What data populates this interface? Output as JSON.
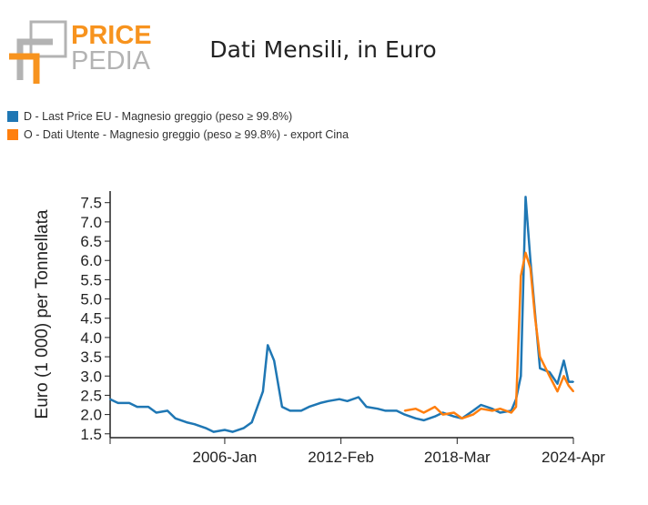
{
  "brand": {
    "line1": "PRICE",
    "line2": "PEDIA"
  },
  "colors": {
    "series_d": "#1f77b4",
    "series_o": "#ff7f0e",
    "logo_orange": "#f7931e",
    "logo_gray": "#b3b3b3"
  },
  "chart_data": {
    "type": "line",
    "title": "Dati Mensili, in Euro",
    "ylabel": "Euro (1 000) per Tonnellata",
    "xlabel": "",
    "ylim": [
      1.4,
      7.8
    ],
    "yticks": [
      1.5,
      2.0,
      2.5,
      3.0,
      3.5,
      4.0,
      4.5,
      5.0,
      5.5,
      6.0,
      6.5,
      7.0,
      7.5
    ],
    "ytick_labels": [
      "1.5",
      "2.0",
      "2.5",
      "3.0",
      "3.5",
      "4.0",
      "4.5",
      "5.0",
      "5.5",
      "6.0",
      "6.5",
      "7.0",
      "7.5"
    ],
    "xlim": [
      "2000-01",
      "2024-04"
    ],
    "xticks": [
      "2000-01",
      "2006-01",
      "2012-02",
      "2018-03",
      "2024-04"
    ],
    "xtick_labels": [
      "",
      "2006-Jan",
      "2012-Feb",
      "2018-Mar",
      "2024-Apr"
    ],
    "legend_position": "top-left",
    "grid": false,
    "series": [
      {
        "name": "D - Last Price EU - Magnesio greggio (peso ≥ 99.8%)",
        "color": "#1f77b4",
        "points": [
          [
            "2000-01",
            2.4
          ],
          [
            "2000-06",
            2.3
          ],
          [
            "2001-01",
            2.3
          ],
          [
            "2001-06",
            2.2
          ],
          [
            "2002-01",
            2.2
          ],
          [
            "2002-06",
            2.05
          ],
          [
            "2003-01",
            2.1
          ],
          [
            "2003-06",
            1.9
          ],
          [
            "2004-01",
            1.8
          ],
          [
            "2004-06",
            1.75
          ],
          [
            "2005-01",
            1.65
          ],
          [
            "2005-06",
            1.55
          ],
          [
            "2006-01",
            1.6
          ],
          [
            "2006-06",
            1.55
          ],
          [
            "2007-01",
            1.65
          ],
          [
            "2007-06",
            1.8
          ],
          [
            "2008-01",
            2.6
          ],
          [
            "2008-04",
            3.8
          ],
          [
            "2008-08",
            3.4
          ],
          [
            "2009-01",
            2.2
          ],
          [
            "2009-06",
            2.1
          ],
          [
            "2010-01",
            2.1
          ],
          [
            "2010-06",
            2.2
          ],
          [
            "2011-01",
            2.3
          ],
          [
            "2011-06",
            2.35
          ],
          [
            "2012-01",
            2.4
          ],
          [
            "2012-06",
            2.35
          ],
          [
            "2013-01",
            2.45
          ],
          [
            "2013-06",
            2.2
          ],
          [
            "2014-01",
            2.15
          ],
          [
            "2014-06",
            2.1
          ],
          [
            "2015-01",
            2.1
          ],
          [
            "2015-06",
            2.0
          ],
          [
            "2016-01",
            1.9
          ],
          [
            "2016-06",
            1.85
          ],
          [
            "2017-01",
            1.95
          ],
          [
            "2017-06",
            2.05
          ],
          [
            "2018-01",
            1.95
          ],
          [
            "2018-06",
            1.9
          ],
          [
            "2019-01",
            2.1
          ],
          [
            "2019-06",
            2.25
          ],
          [
            "2020-01",
            2.15
          ],
          [
            "2020-06",
            2.05
          ],
          [
            "2021-01",
            2.1
          ],
          [
            "2021-04",
            2.4
          ],
          [
            "2021-07",
            3.0
          ],
          [
            "2021-10",
            7.65
          ],
          [
            "2022-01",
            6.0
          ],
          [
            "2022-04",
            4.6
          ],
          [
            "2022-07",
            3.2
          ],
          [
            "2023-01",
            3.1
          ],
          [
            "2023-06",
            2.8
          ],
          [
            "2023-10",
            3.4
          ],
          [
            "2024-01",
            2.85
          ],
          [
            "2024-04",
            2.85
          ]
        ]
      },
      {
        "name": "O - Dati Utente - Magnesio greggio (peso ≥ 99.8%) - export Cina",
        "color": "#ff7f0e",
        "points": [
          [
            "2015-06",
            2.1
          ],
          [
            "2016-01",
            2.15
          ],
          [
            "2016-06",
            2.05
          ],
          [
            "2017-01",
            2.2
          ],
          [
            "2017-06",
            2.0
          ],
          [
            "2018-01",
            2.05
          ],
          [
            "2018-06",
            1.9
          ],
          [
            "2019-01",
            2.0
          ],
          [
            "2019-06",
            2.15
          ],
          [
            "2020-01",
            2.1
          ],
          [
            "2020-06",
            2.15
          ],
          [
            "2021-01",
            2.05
          ],
          [
            "2021-04",
            2.2
          ],
          [
            "2021-07",
            5.6
          ],
          [
            "2021-10",
            6.2
          ],
          [
            "2022-01",
            5.8
          ],
          [
            "2022-04",
            4.5
          ],
          [
            "2022-07",
            3.5
          ],
          [
            "2023-01",
            3.0
          ],
          [
            "2023-06",
            2.6
          ],
          [
            "2023-10",
            3.0
          ],
          [
            "2024-01",
            2.75
          ],
          [
            "2024-04",
            2.6
          ]
        ]
      }
    ]
  }
}
